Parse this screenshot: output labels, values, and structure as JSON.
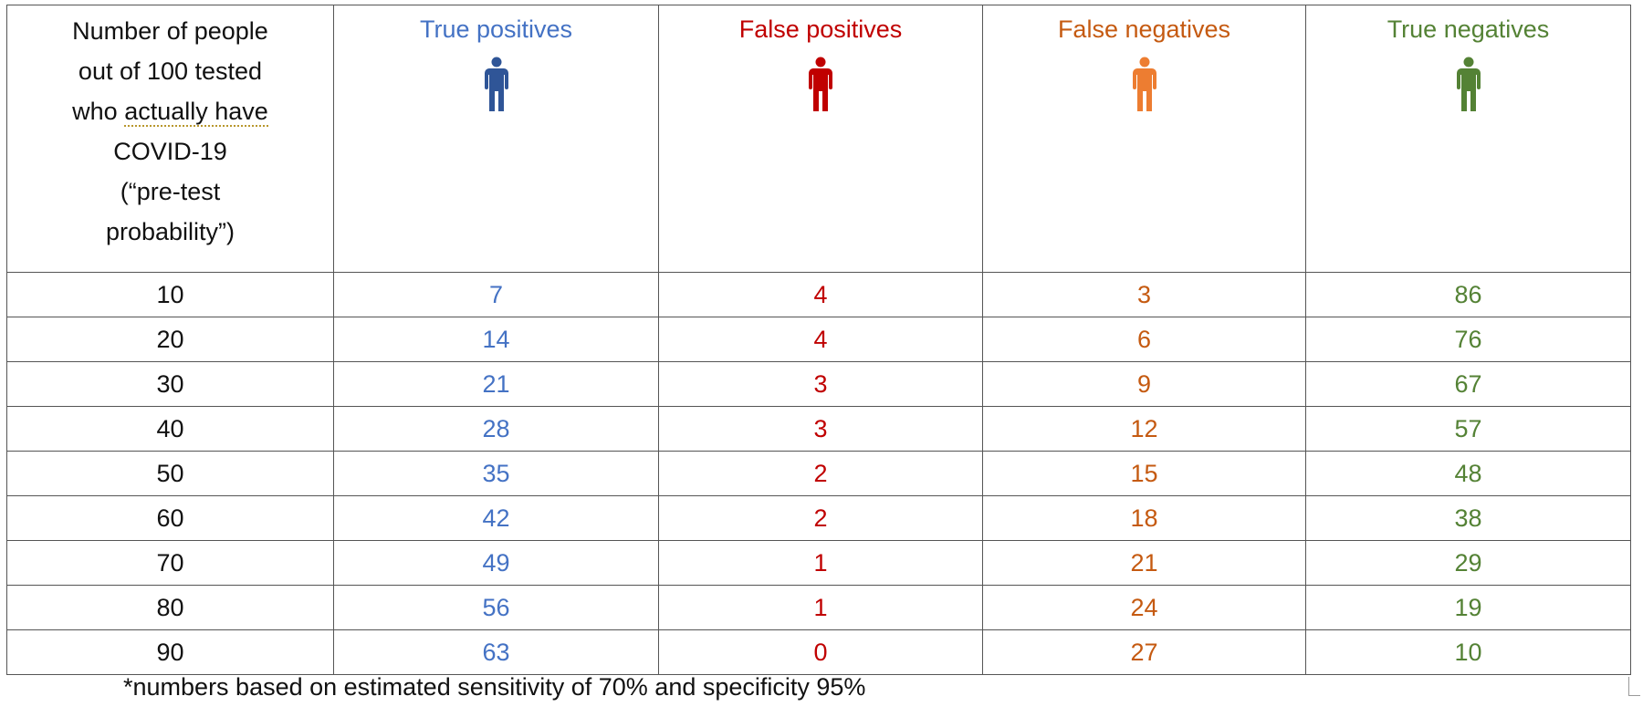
{
  "header": {
    "first_col": [
      "Number of people",
      "out of 100 tested",
      "who ",
      "actually have",
      "COVID-19",
      "(“pre-test",
      "probability”)"
    ],
    "columns": [
      {
        "label": "True positives",
        "color": "#4472c4",
        "icon": "person-icon",
        "icon_color": "#2f5597"
      },
      {
        "label": "False positives",
        "color": "#c00000",
        "icon": "person-icon",
        "icon_color": "#c00000"
      },
      {
        "label": "False negatives",
        "color": "#c55a11",
        "icon": "person-icon",
        "icon_color": "#ed7d31"
      },
      {
        "label": "True negatives",
        "color": "#548235",
        "icon": "person-icon",
        "icon_color": "#548235"
      }
    ]
  },
  "rows": [
    [
      "10",
      "7",
      "4",
      "3",
      "86"
    ],
    [
      "20",
      "14",
      "4",
      "6",
      "76"
    ],
    [
      "30",
      "21",
      "3",
      "9",
      "67"
    ],
    [
      "40",
      "28",
      "3",
      "12",
      "57"
    ],
    [
      "50",
      "35",
      "2",
      "15",
      "48"
    ],
    [
      "60",
      "42",
      "2",
      "18",
      "38"
    ],
    [
      "70",
      "49",
      "1",
      "21",
      "29"
    ],
    [
      "80",
      "56",
      "1",
      "24",
      "19"
    ],
    [
      "90",
      "63",
      "0",
      "27",
      "10"
    ]
  ],
  "footnote": "*numbers based on estimated sensitivity of 70% and specificity 95%"
}
